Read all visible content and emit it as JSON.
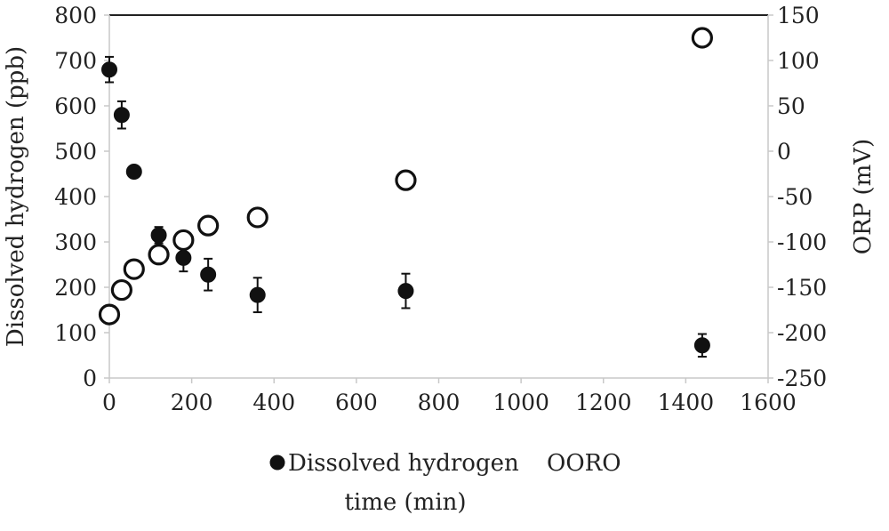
{
  "chart_data": {
    "type": "scatter",
    "title": "",
    "xlabel": "time (min)",
    "ylabel_left": "Dissolved hydrogen (ppb)",
    "ylabel_right": "ORP (mV)",
    "xlim": [
      0,
      1600
    ],
    "ylim_left": [
      0,
      800
    ],
    "ylim_right": [
      -250,
      150
    ],
    "x_ticks": [
      0,
      200,
      400,
      600,
      800,
      1000,
      1200,
      1400,
      1600
    ],
    "y_left_ticks": [
      0,
      100,
      200,
      300,
      400,
      500,
      600,
      700,
      800
    ],
    "y_right_ticks": [
      -250,
      -200,
      -150,
      -100,
      -50,
      0,
      50,
      100,
      150
    ],
    "grid": false,
    "legend_position": "bottom",
    "series": [
      {
        "name": "Dissolved hydrogen",
        "axis": "left",
        "marker": "filled-circle",
        "color": "#111111",
        "x": [
          0,
          30,
          60,
          120,
          180,
          240,
          360,
          720,
          1440
        ],
        "y": [
          680,
          580,
          455,
          315,
          265,
          228,
          183,
          192,
          72
        ],
        "err": [
          28,
          30,
          0,
          18,
          30,
          35,
          38,
          38,
          25
        ]
      },
      {
        "name": "ORP",
        "legend_label": "OORO",
        "axis": "right",
        "marker": "open-circle",
        "color": "#111111",
        "x": [
          0,
          30,
          60,
          120,
          180,
          240,
          360,
          720,
          1440
        ],
        "y": [
          -180,
          -153,
          -130,
          -114,
          -98,
          -82,
          -73,
          -32,
          125
        ],
        "err": [
          0,
          0,
          0,
          0,
          0,
          0,
          7,
          9,
          0
        ]
      }
    ]
  }
}
